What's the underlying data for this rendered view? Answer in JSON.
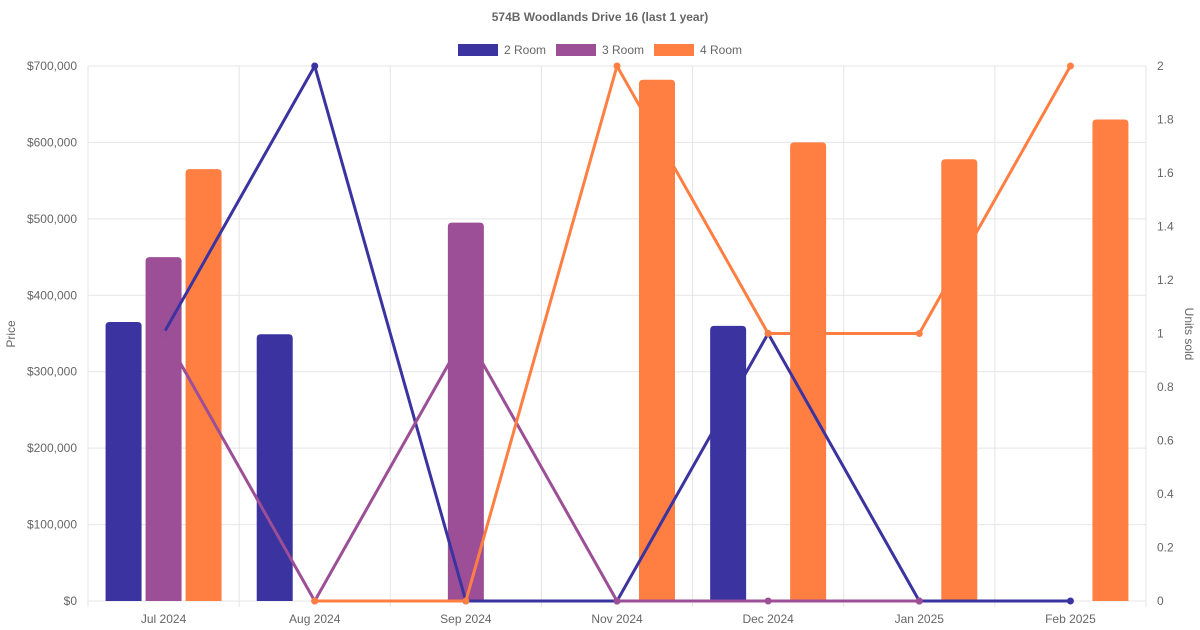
{
  "chart_data": {
    "type": "bar",
    "title": "574B Woodlands Drive 16 (last 1 year)",
    "categories": [
      "Jul 2024",
      "Aug 2024",
      "Sep 2024",
      "Nov 2024",
      "Dec 2024",
      "Jan 2025",
      "Feb 2025"
    ],
    "left_axis": {
      "label": "Price",
      "range": [
        0,
        700000
      ],
      "ticks": [
        "$0",
        "$100,000",
        "$200,000",
        "$300,000",
        "$400,000",
        "$500,000",
        "$600,000",
        "$700,000"
      ]
    },
    "right_axis": {
      "label": "Units sold",
      "range": [
        0,
        2
      ],
      "ticks": [
        "0",
        "0.2",
        "0.4",
        "0.6",
        "0.8",
        "1",
        "1.2",
        "1.4",
        "1.6",
        "1.8",
        "2"
      ]
    },
    "legend_position": "top",
    "grid": true,
    "series": [
      {
        "name": "2 Room",
        "color": "#3a33a0",
        "price": [
          365000,
          349000,
          null,
          null,
          360000,
          null,
          null
        ],
        "units_sold": [
          1,
          2,
          0,
          0,
          1,
          0,
          0
        ]
      },
      {
        "name": "3 Room",
        "color": "#9c4f96",
        "price": [
          450000,
          null,
          495000,
          null,
          null,
          null,
          null
        ],
        "units_sold": [
          1,
          0,
          1,
          0,
          0,
          0,
          null
        ]
      },
      {
        "name": "4 Room",
        "color": "#ff7f43",
        "price": [
          565000,
          null,
          null,
          682000,
          600000,
          578000,
          630000
        ],
        "units_sold": [
          null,
          0,
          0,
          2,
          1,
          1,
          2
        ]
      }
    ]
  }
}
